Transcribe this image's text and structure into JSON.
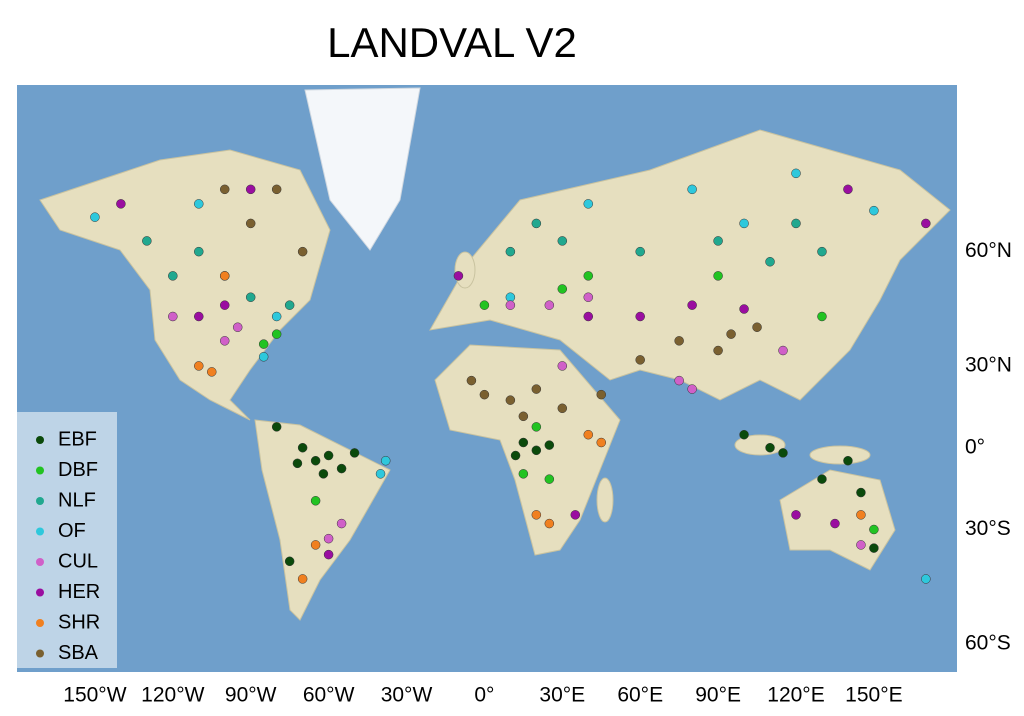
{
  "chart_data": {
    "type": "scatter",
    "title": "LANDVAL V2",
    "xlim": [
      -180,
      182
    ],
    "ylim": [
      -65,
      80
    ],
    "xticks": [
      {
        "value": -150,
        "label": "150°W"
      },
      {
        "value": -120,
        "label": "120°W"
      },
      {
        "value": -90,
        "label": "90°W"
      },
      {
        "value": -60,
        "label": "60°W"
      },
      {
        "value": -30,
        "label": "30°W"
      },
      {
        "value": 0,
        "label": "0°"
      },
      {
        "value": 30,
        "label": "30°E"
      },
      {
        "value": 60,
        "label": "60°E"
      },
      {
        "value": 90,
        "label": "90°E"
      },
      {
        "value": 120,
        "label": "120°E"
      },
      {
        "value": 150,
        "label": "150°E"
      }
    ],
    "yticks": [
      {
        "value": 60,
        "label": "60°N"
      },
      {
        "value": 30,
        "label": "30°N"
      },
      {
        "value": 0,
        "label": "0°"
      },
      {
        "value": -30,
        "label": "30°S"
      },
      {
        "value": -60,
        "label": "60°S"
      }
    ],
    "legend": "lower left",
    "series": [
      {
        "name": "EBF",
        "color": "#0b4a0b",
        "x": [
          -65,
          -60,
          -70,
          -55,
          -62,
          -72,
          -50,
          15,
          20,
          25,
          12,
          100,
          110,
          115,
          140,
          130,
          145,
          -80,
          -75,
          150
        ],
        "values": [
          -5,
          -3,
          0,
          -8,
          -10,
          -6,
          -2,
          2,
          -1,
          1,
          -3,
          5,
          0,
          -2,
          -5,
          -12,
          -17,
          8,
          -40,
          -36
        ]
      },
      {
        "name": "DBF",
        "color": "#22c322",
        "x": [
          -85,
          -80,
          15,
          25,
          20,
          30,
          40,
          90,
          130,
          -65,
          150,
          0
        ],
        "values": [
          37,
          40,
          -10,
          -12,
          8,
          52,
          55,
          55,
          45,
          -20,
          -30,
          48
        ]
      },
      {
        "name": "NLF",
        "color": "#21a88f",
        "x": [
          -120,
          -100,
          -90,
          -130,
          -75,
          30,
          60,
          90,
          110,
          130,
          20,
          120,
          -110,
          10
        ],
        "values": [
          55,
          55,
          50,
          62,
          48,
          62,
          60,
          62,
          58,
          60,
          65,
          65,
          60,
          60
        ]
      },
      {
        "name": "OF",
        "color": "#2ec8dc",
        "x": [
          -150,
          -110,
          -80,
          -40,
          -38,
          40,
          80,
          120,
          150,
          -85,
          10,
          170,
          100
        ],
        "values": [
          66,
          68,
          45,
          -10,
          -5,
          68,
          70,
          72,
          67,
          33,
          50,
          -45,
          65
        ]
      },
      {
        "name": "CUL",
        "color": "#d060c8",
        "x": [
          -95,
          -100,
          -60,
          -55,
          10,
          25,
          40,
          75,
          80,
          115,
          145,
          -120,
          30
        ],
        "values": [
          42,
          38,
          -33,
          -28,
          48,
          48,
          50,
          25,
          22,
          35,
          -35,
          45,
          30
        ]
      },
      {
        "name": "HER",
        "color": "#9a0ea0",
        "x": [
          -110,
          -100,
          -140,
          -90,
          -60,
          40,
          60,
          80,
          100,
          120,
          135,
          -10,
          140,
          170,
          35
        ],
        "values": [
          45,
          48,
          68,
          70,
          -38,
          45,
          45,
          48,
          47,
          -25,
          -28,
          55,
          70,
          65,
          -25
        ]
      },
      {
        "name": "SHR",
        "color": "#f08020",
        "x": [
          -110,
          -105,
          -100,
          -65,
          20,
          25,
          40,
          45,
          145,
          -70
        ],
        "values": [
          30,
          28,
          55,
          -35,
          -25,
          -28,
          5,
          2,
          -25,
          -45
        ]
      },
      {
        "name": "SBA",
        "color": "#7a6030",
        "x": [
          0,
          10,
          20,
          -5,
          30,
          15,
          45,
          60,
          75,
          95,
          105,
          -80,
          -90,
          -100,
          -70,
          90
        ],
        "values": [
          20,
          18,
          22,
          25,
          15,
          12,
          20,
          32,
          38,
          40,
          42,
          70,
          65,
          70,
          60,
          35
        ]
      }
    ]
  }
}
